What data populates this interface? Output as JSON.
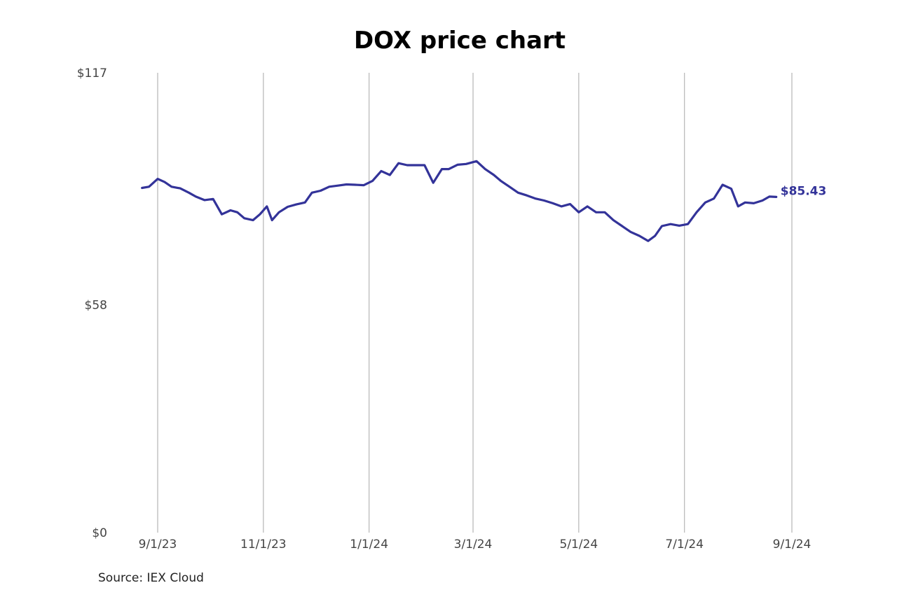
{
  "source": "Source: IEX Cloud",
  "colors": {
    "line": "#333399",
    "grid": "#b5b5b5",
    "tick_text": "#444444"
  },
  "chart_data": {
    "type": "line",
    "title": "DOX price chart",
    "xlabel": "",
    "ylabel": "",
    "ylim": [
      0,
      117
    ],
    "xlim": [
      "2023-08-19",
      "2024-09-01"
    ],
    "y_ticks": [
      {
        "value": 0,
        "label": "$0"
      },
      {
        "value": 58,
        "label": "$58"
      },
      {
        "value": 117,
        "label": "$117"
      }
    ],
    "x_ticks": [
      {
        "date": "2023-09-01",
        "label": "9/1/23"
      },
      {
        "date": "2023-11-01",
        "label": "11/1/23"
      },
      {
        "date": "2024-01-01",
        "label": "1/1/24"
      },
      {
        "date": "2024-03-01",
        "label": "3/1/24"
      },
      {
        "date": "2024-05-01",
        "label": "5/1/24"
      },
      {
        "date": "2024-07-01",
        "label": "7/1/24"
      },
      {
        "date": "2024-09-01",
        "label": "9/1/24"
      }
    ],
    "grid": {
      "vertical": true,
      "horizontal": false
    },
    "last_value_label": "$85.43",
    "series": [
      {
        "x": [
          "2023-08-23",
          "2023-08-27",
          "2023-09-01",
          "2023-09-05",
          "2023-09-09",
          "2023-09-14",
          "2023-09-19",
          "2023-09-23",
          "2023-09-28",
          "2023-10-03",
          "2023-10-08",
          "2023-10-13",
          "2023-10-17",
          "2023-10-21",
          "2023-10-26",
          "2023-10-30",
          "2023-11-03",
          "2023-11-06",
          "2023-11-10",
          "2023-11-15",
          "2023-11-20",
          "2023-11-25",
          "2023-11-29",
          "2023-12-04",
          "2023-12-09",
          "2023-12-14",
          "2023-12-19",
          "2023-12-24",
          "2023-12-29",
          "2024-01-03",
          "2024-01-08",
          "2024-01-13",
          "2024-01-18",
          "2024-01-23",
          "2024-01-28",
          "2024-02-02",
          "2024-02-07",
          "2024-02-12",
          "2024-02-16",
          "2024-02-21",
          "2024-02-26",
          "2024-03-03",
          "2024-03-08",
          "2024-03-13",
          "2024-03-17",
          "2024-03-22",
          "2024-03-27",
          "2024-04-01",
          "2024-04-06",
          "2024-04-11",
          "2024-04-16",
          "2024-04-21",
          "2024-04-26",
          "2024-05-01",
          "2024-05-06",
          "2024-05-11",
          "2024-05-16",
          "2024-05-21",
          "2024-05-26",
          "2024-05-31",
          "2024-06-05",
          "2024-06-10",
          "2024-06-14",
          "2024-06-18",
          "2024-06-23",
          "2024-06-28",
          "2024-07-03",
          "2024-07-08",
          "2024-07-13",
          "2024-07-18",
          "2024-07-23",
          "2024-07-28",
          "2024-08-01",
          "2024-08-05",
          "2024-08-10",
          "2024-08-15",
          "2024-08-19",
          "2024-08-23"
        ],
        "y": [
          87.7,
          88.0,
          90.0,
          89.2,
          88.0,
          87.6,
          86.5,
          85.5,
          84.6,
          84.9,
          81.0,
          82.0,
          81.5,
          80.0,
          79.5,
          81.0,
          83.0,
          79.5,
          81.5,
          82.9,
          83.5,
          84.0,
          86.5,
          87.0,
          88.0,
          88.3,
          88.6,
          88.5,
          88.4,
          89.5,
          92.0,
          91.0,
          94.0,
          93.5,
          93.5,
          93.5,
          89.0,
          92.5,
          92.5,
          93.6,
          93.8,
          94.5,
          92.5,
          91.0,
          89.5,
          88.0,
          86.5,
          85.8,
          85.0,
          84.5,
          83.8,
          83.0,
          83.6,
          81.5,
          83.0,
          81.5,
          81.5,
          79.5,
          78.0,
          76.5,
          75.5,
          74.2,
          75.5,
          78.0,
          78.5,
          78.1,
          78.5,
          81.5,
          84.0,
          85.0,
          88.5,
          87.5,
          83.0,
          84.0,
          83.8,
          84.5,
          85.5,
          85.4
        ]
      }
    ]
  }
}
